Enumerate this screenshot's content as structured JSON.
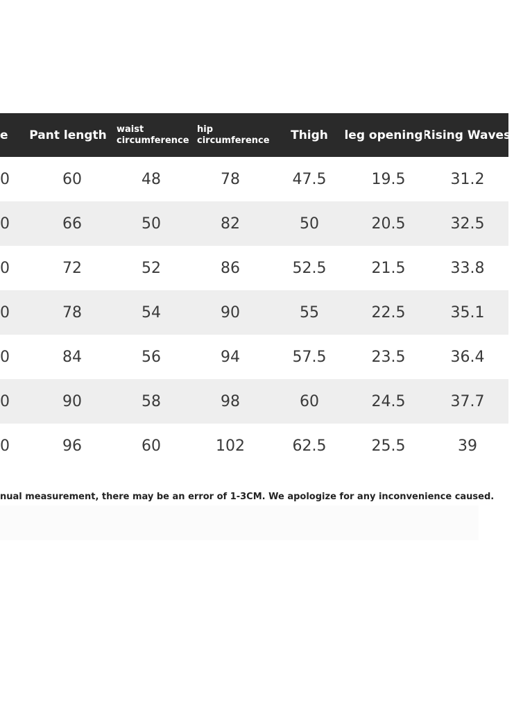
{
  "headers": {
    "size": "e",
    "pant_length": "Pant length",
    "waist_line1": "waist",
    "waist_line2": "circumference",
    "hip_line1": "hip",
    "hip_line2": "circumference",
    "thigh": "Thigh",
    "leg_opening": "leg opening",
    "rising_waves": "Rising Waves"
  },
  "rows": [
    [
      "0",
      "60",
      "48",
      "78",
      "47.5",
      "19.5",
      "31.2"
    ],
    [
      "0",
      "66",
      "50",
      "82",
      "50",
      "20.5",
      "32.5"
    ],
    [
      "0",
      "72",
      "52",
      "86",
      "52.5",
      "21.5",
      "33.8"
    ],
    [
      "0",
      "78",
      "54",
      "90",
      "55",
      "22.5",
      "35.1"
    ],
    [
      "0",
      "84",
      "56",
      "94",
      "57.5",
      "23.5",
      "36.4"
    ],
    [
      "0",
      "90",
      "58",
      "98",
      "60",
      "24.5",
      "37.7"
    ],
    [
      "0",
      "96",
      "60",
      "102",
      "62.5",
      "25.5",
      "39"
    ]
  ],
  "note": "nual measurement, there may be an error of 1-3CM. We apologize for any inconvenience caused."
}
